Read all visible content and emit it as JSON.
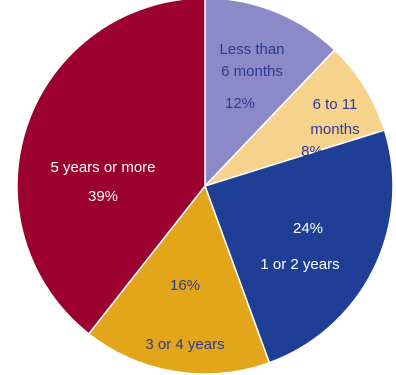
{
  "chart_data": {
    "type": "pie",
    "title": "",
    "start_angle_deg": 0,
    "direction": "clockwise",
    "slices": [
      {
        "label": "Less than 6 months",
        "label_lines": [
          "Less than",
          "6 months"
        ],
        "value": 12,
        "value_text": "12%",
        "color": "#8b89c8",
        "label_color": "#2e3a8f"
      },
      {
        "label": "6 to 11 months",
        "label_lines": [
          "6 to 11",
          "months"
        ],
        "value": 8,
        "value_text": "8%",
        "color": "#f5d38d",
        "label_color": "#2e3a8f"
      },
      {
        "label": "1 or 2 years",
        "label_lines": [
          "1 or 2 years"
        ],
        "value": 24,
        "value_text": "24%",
        "color": "#1f3e96",
        "label_color": "#ffffff"
      },
      {
        "label": "3 or 4 years",
        "label_lines": [
          "3 or 4 years"
        ],
        "value": 16,
        "value_text": "16%",
        "color": "#e3a51a",
        "label_color": "#2e3a8f"
      },
      {
        "label": "5 years or more",
        "label_lines": [
          "5 years or more"
        ],
        "value": 39,
        "value_text": "39%",
        "color": "#9b0030",
        "label_color": "#ffffff"
      }
    ]
  }
}
